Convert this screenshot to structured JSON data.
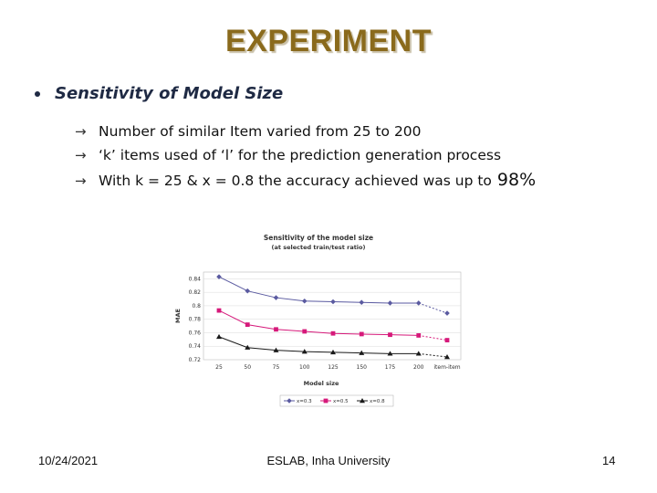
{
  "slide": {
    "title": "EXPERIMENT",
    "bullet": "Sensitivity of Model Size",
    "arrow_glyph": "→",
    "points": [
      {
        "text": "Number of similar Item varied from 25 to 200"
      },
      {
        "text": "‘k’ items used of ‘l’ for the prediction generation process"
      },
      {
        "text": "With k = 25 & x = 0.8 the accuracy achieved was up to",
        "emphasis": "98%"
      }
    ]
  },
  "footer": {
    "date": "10/24/2021",
    "center": "ESLAB, Inha University",
    "page": "14"
  },
  "chart_data": {
    "type": "line",
    "title": "Sensitivity of the model size",
    "subtitle": "(at selected train/test ratio)",
    "xlabel": "Model size",
    "ylabel": "MAE",
    "categories": [
      "25",
      "50",
      "75",
      "100",
      "125",
      "150",
      "175",
      "200",
      "item-item"
    ],
    "ylim": [
      0.72,
      0.85
    ],
    "yticks": [
      "0.84",
      "0.82",
      "0.8",
      "0.78",
      "0.76",
      "0.74",
      "0.72"
    ],
    "legend_position": "bottom",
    "series": [
      {
        "name": "x=0.3",
        "color": "#5a5aa0",
        "marker": "diamond",
        "values": [
          0.843,
          0.822,
          0.812,
          0.807,
          0.806,
          0.805,
          0.804,
          0.804,
          0.789
        ]
      },
      {
        "name": "x=0.5",
        "color": "#d6197a",
        "marker": "square",
        "values": [
          0.793,
          0.772,
          0.765,
          0.762,
          0.759,
          0.758,
          0.757,
          0.756,
          0.749
        ]
      },
      {
        "name": "x=0.8",
        "color": "#1a1a1a",
        "marker": "triangle",
        "values": [
          0.754,
          0.738,
          0.734,
          0.732,
          0.731,
          0.73,
          0.729,
          0.729,
          0.724
        ]
      }
    ]
  }
}
